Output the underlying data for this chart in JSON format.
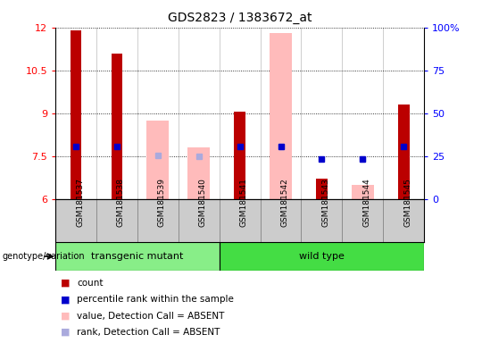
{
  "title": "GDS2823 / 1383672_at",
  "samples": [
    "GSM181537",
    "GSM181538",
    "GSM181539",
    "GSM181540",
    "GSM181541",
    "GSM181542",
    "GSM181543",
    "GSM181544",
    "GSM181545"
  ],
  "ylim": [
    6,
    12
  ],
  "yticks": [
    6,
    7.5,
    9,
    10.5,
    12
  ],
  "ytick_labels": [
    "6",
    "7.5",
    "9",
    "10.5",
    "12"
  ],
  "right_ytick_labels": [
    "0",
    "25",
    "50",
    "75",
    "100%"
  ],
  "count_values": [
    11.9,
    11.1,
    null,
    null,
    9.05,
    null,
    6.7,
    null,
    9.3
  ],
  "rank_values": [
    7.85,
    7.85,
    null,
    null,
    7.82,
    7.82,
    7.4,
    7.4,
    7.82
  ],
  "absent_value_values": [
    null,
    null,
    8.75,
    7.8,
    null,
    11.8,
    null,
    6.5,
    null
  ],
  "absent_rank_values": [
    null,
    null,
    7.52,
    7.5,
    null,
    7.82,
    null,
    7.4,
    null
  ],
  "count_color": "#bb0000",
  "rank_color": "#0000cc",
  "absent_value_color": "#ffbbbb",
  "absent_rank_color": "#aaaadd",
  "grp_transgenic_color": "#88ee88",
  "grp_wildtype_color": "#44dd44",
  "grp_border_color": "#000000",
  "plot_bg": "#ffffff",
  "tick_bg": "#cccccc",
  "base_value": 6.0,
  "legend_items": [
    {
      "color": "#bb0000",
      "label": "count",
      "marker": "s"
    },
    {
      "color": "#0000cc",
      "label": "percentile rank within the sample",
      "marker": "s"
    },
    {
      "color": "#ffbbbb",
      "label": "value, Detection Call = ABSENT",
      "marker": "s"
    },
    {
      "color": "#aaaadd",
      "label": "rank, Detection Call = ABSENT",
      "marker": "s"
    }
  ]
}
